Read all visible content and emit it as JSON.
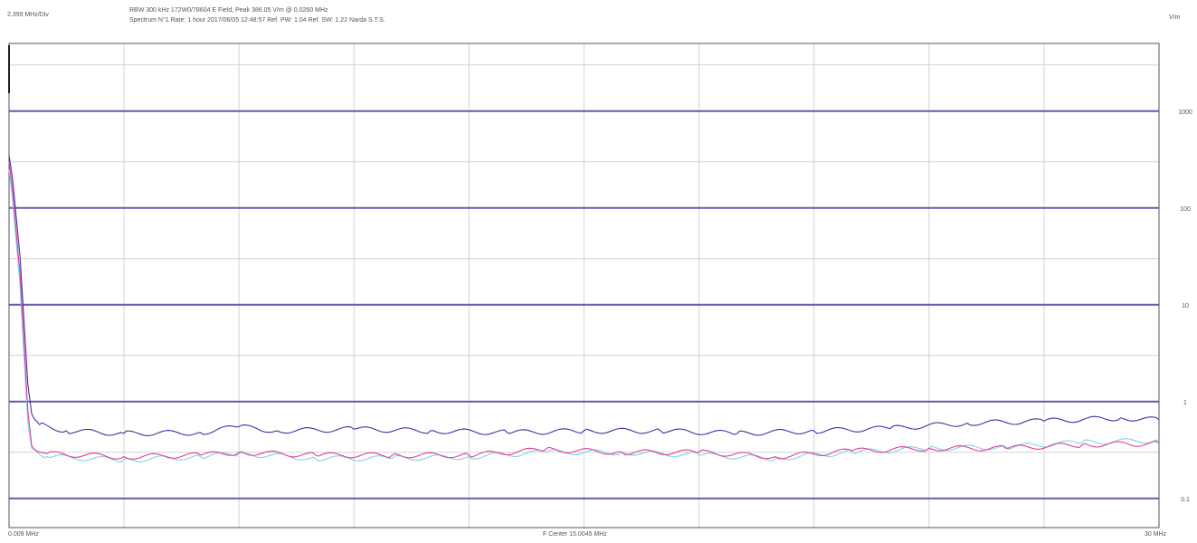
{
  "header": {
    "div_label": "2.399 MHz/Div",
    "line1": "RBW 300 kHz   172W0/78604   E Field, Peak 386.05 V/m @ 0.0260 MHz",
    "line2": "Spectrum N°1 Rate: 1 hour   2017/06/05 12:48:57   Ref. PW: 1.04 Ref. SW: 1.22   Narda S.T.S.",
    "unit": "V/m"
  },
  "x_axis": {
    "start_label": "0.009 MHz",
    "center_label": "F Center 15.0045 MHz",
    "end_label": "30 MHz"
  },
  "colors": {
    "background": "#ffffff",
    "grid_major": "#6a5aa8",
    "grid_minor": "#d4d4d4",
    "series_max": "#4a2fa0",
    "series_avg": "#e0409a",
    "series_act": "#7fd4e8"
  },
  "chart_data": {
    "type": "line",
    "x_unit": "MHz",
    "y_unit": "V/m",
    "xlim": [
      0.009,
      30
    ],
    "ylim": [
      0.05,
      5000
    ],
    "y_scale": "log",
    "grid": true,
    "y_ticks": [
      {
        "value": 1000,
        "label": "1000"
      },
      {
        "value": 100,
        "label": "100"
      },
      {
        "value": 10,
        "label": "10"
      },
      {
        "value": 1,
        "label": "1"
      },
      {
        "value": 0.1,
        "label": "0.1"
      }
    ],
    "series": [
      {
        "color": "#4a2fa0",
        "points": [
          [
            0.009,
            350
          ],
          [
            0.1,
            200
          ],
          [
            0.3,
            30
          ],
          [
            0.5,
            1.5
          ],
          [
            0.6,
            0.75
          ],
          [
            0.8,
            0.58
          ],
          [
            1.5,
            0.5
          ],
          [
            3,
            0.47
          ],
          [
            5,
            0.48
          ],
          [
            6,
            0.55
          ],
          [
            7,
            0.5
          ],
          [
            9,
            0.52
          ],
          [
            11,
            0.5
          ],
          [
            13,
            0.48
          ],
          [
            15,
            0.5
          ],
          [
            17,
            0.5
          ],
          [
            19,
            0.47
          ],
          [
            21,
            0.5
          ],
          [
            23,
            0.53
          ],
          [
            25,
            0.6
          ],
          [
            27,
            0.63
          ],
          [
            29,
            0.68
          ],
          [
            30,
            0.65
          ]
        ]
      },
      {
        "color": "#e0409a",
        "points": [
          [
            0.009,
            300
          ],
          [
            0.1,
            150
          ],
          [
            0.3,
            20
          ],
          [
            0.5,
            0.8
          ],
          [
            0.6,
            0.35
          ],
          [
            1,
            0.29
          ],
          [
            3,
            0.27
          ],
          [
            5,
            0.28
          ],
          [
            6,
            0.3
          ],
          [
            8,
            0.28
          ],
          [
            10,
            0.28
          ],
          [
            12,
            0.28
          ],
          [
            14,
            0.32
          ],
          [
            16,
            0.3
          ],
          [
            18,
            0.3
          ],
          [
            20,
            0.27
          ],
          [
            22,
            0.31
          ],
          [
            24,
            0.33
          ],
          [
            26,
            0.33
          ],
          [
            28,
            0.36
          ],
          [
            30,
            0.37
          ]
        ]
      },
      {
        "color": "#7fd4e8",
        "points": [
          [
            0.009,
            250
          ],
          [
            0.1,
            120
          ],
          [
            0.3,
            15
          ],
          [
            0.5,
            0.6
          ],
          [
            0.6,
            0.33
          ],
          [
            1,
            0.27
          ],
          [
            3,
            0.25
          ],
          [
            5,
            0.27
          ],
          [
            6,
            0.29
          ],
          [
            8,
            0.26
          ],
          [
            10,
            0.26
          ],
          [
            12,
            0.27
          ],
          [
            14,
            0.3
          ],
          [
            16,
            0.3
          ],
          [
            18,
            0.28
          ],
          [
            20,
            0.26
          ],
          [
            22,
            0.3
          ],
          [
            24,
            0.33
          ],
          [
            26,
            0.34
          ],
          [
            28,
            0.38
          ],
          [
            30,
            0.4
          ]
        ]
      }
    ]
  }
}
